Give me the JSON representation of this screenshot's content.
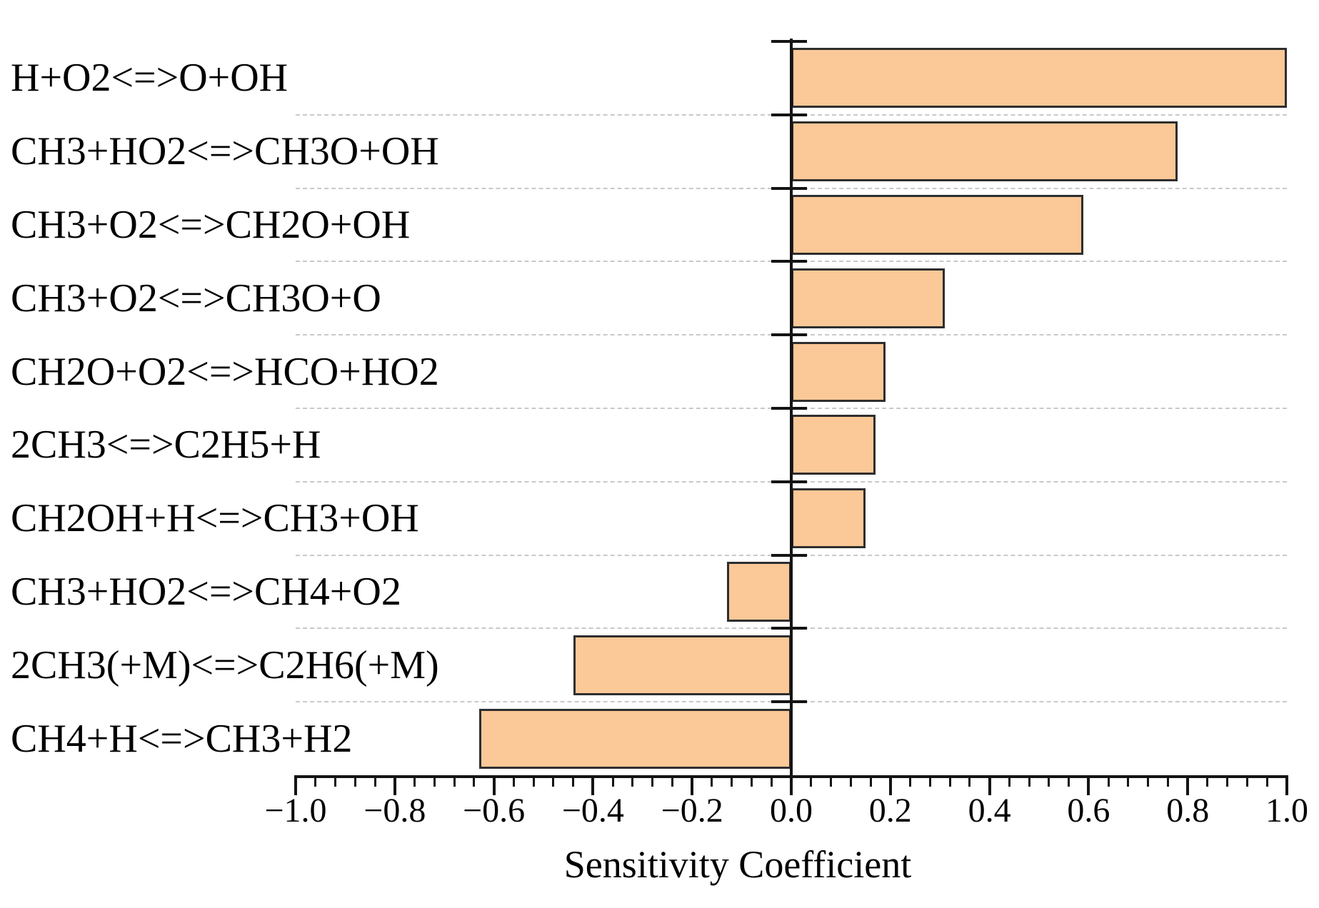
{
  "figure": {
    "background": "#ffffff"
  },
  "chart_data": {
    "type": "bar",
    "orientation": "horizontal",
    "title": "",
    "xlabel": "Sensitivity Coefficient",
    "ylabel": "",
    "xlim": [
      -1.0,
      1.0
    ],
    "x_major_tick_step": 0.2,
    "x_minor_tick_step": 0.04,
    "x_tick_labels": [
      "−1.0",
      "−0.8",
      "−0.6",
      "−0.4",
      "−0.2",
      "0.0",
      "0.2",
      "0.4",
      "0.6",
      "0.8",
      "1.0"
    ],
    "categories": [
      "H+O2<=>O+OH",
      "CH3+HO2<=>CH3O+OH",
      "CH3+O2<=>CH2O+OH",
      "CH3+O2<=>CH3O+O",
      "CH2O+O2<=>HCO+HO2",
      "2CH3<=>C2H5+H",
      "CH2OH+H<=>CH3+OH",
      "CH3+HO2<=>CH4+O2",
      "2CH3(+M)<=>C2H6(+M)",
      "CH4+H<=>CH3+H2"
    ],
    "values": [
      1.0,
      0.78,
      0.59,
      0.31,
      0.19,
      0.17,
      0.15,
      -0.13,
      -0.44,
      -0.63
    ],
    "grid": {
      "row_separators": "dashed",
      "color": "#c9c9c9"
    },
    "colors": {
      "bar_fill": "#FBC897",
      "bar_border": "#2E2E2E",
      "axis": "#141414",
      "text": "#000000"
    },
    "legend": null
  }
}
